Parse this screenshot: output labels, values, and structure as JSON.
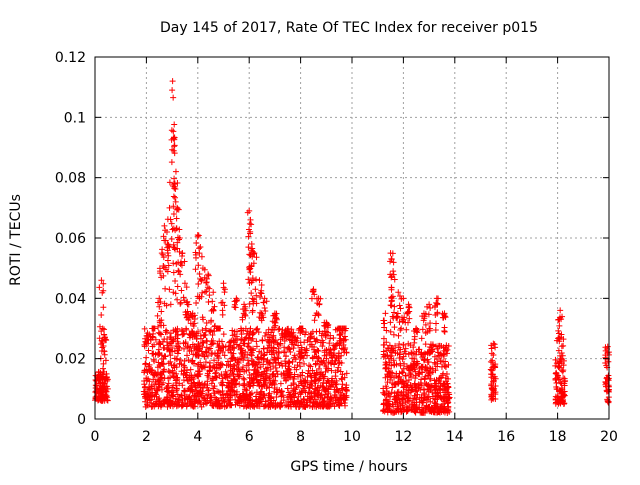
{
  "chart_data": {
    "type": "scatter",
    "title": "Day 145 of 2017, Rate Of TEC Index for receiver p015",
    "xlabel": "GPS time / hours",
    "ylabel": "ROTI / TECUs",
    "xlim": [
      0,
      20
    ],
    "ylim": [
      0,
      0.12
    ],
    "xticks": [
      "0",
      "2",
      "4",
      "6",
      "8",
      "10",
      "12",
      "14",
      "16",
      "18",
      "20"
    ],
    "yticks": [
      "0",
      "0.02",
      "0.04",
      "0.06",
      "0.08",
      "0.1",
      "0.12"
    ],
    "grid": true,
    "marker": "+",
    "colors": {
      "series": "#ff0000",
      "grid": "#a0a0a0",
      "axis": "#000000"
    },
    "series": [
      {
        "name": "ROTI",
        "clusters": [
          {
            "x_range": [
              0.0,
              0.5
            ],
            "y_base": [
              0.006,
              0.016
            ],
            "peak": [
              [
                0.25,
                0.046
              ],
              [
                0.3,
                0.03
              ],
              [
                0.35,
                0.028
              ]
            ]
          },
          {
            "x_range": [
              1.9,
              9.8
            ],
            "y_base": [
              0.004,
              0.03
            ],
            "peak": [
              [
                2.0,
                0.025
              ],
              [
                2.3,
                0.03
              ],
              [
                2.5,
                0.04
              ],
              [
                2.6,
                0.055
              ],
              [
                2.7,
                0.064
              ],
              [
                2.8,
                0.062
              ],
              [
                2.9,
                0.07
              ],
              [
                3.0,
                0.109
              ],
              [
                3.02,
                0.112
              ],
              [
                3.05,
                0.093
              ],
              [
                3.1,
                0.078
              ],
              [
                3.15,
                0.082
              ],
              [
                3.2,
                0.07
              ],
              [
                3.3,
                0.06
              ],
              [
                3.4,
                0.055
              ],
              [
                3.5,
                0.045
              ],
              [
                3.6,
                0.038
              ],
              [
                3.8,
                0.035
              ],
              [
                4.0,
                0.061
              ],
              [
                4.1,
                0.057
              ],
              [
                4.2,
                0.05
              ],
              [
                4.4,
                0.048
              ],
              [
                4.6,
                0.042
              ],
              [
                4.8,
                0.03
              ],
              [
                5.0,
                0.045
              ],
              [
                5.5,
                0.04
              ],
              [
                5.8,
                0.038
              ],
              [
                6.0,
                0.069
              ],
              [
                6.05,
                0.066
              ],
              [
                6.1,
                0.058
              ],
              [
                6.2,
                0.055
              ],
              [
                6.4,
                0.046
              ],
              [
                6.6,
                0.04
              ],
              [
                7.0,
                0.035
              ],
              [
                7.5,
                0.028
              ],
              [
                8.0,
                0.03
              ],
              [
                8.5,
                0.043
              ],
              [
                8.7,
                0.04
              ],
              [
                9.0,
                0.032
              ],
              [
                9.5,
                0.03
              ],
              [
                9.7,
                0.03
              ]
            ]
          },
          {
            "x_range": [
              11.2,
              13.8
            ],
            "y_base": [
              0.002,
              0.025
            ],
            "peak": [
              [
                11.3,
                0.035
              ],
              [
                11.5,
                0.055
              ],
              [
                11.55,
                0.053
              ],
              [
                11.6,
                0.049
              ],
              [
                11.8,
                0.042
              ],
              [
                12.0,
                0.04
              ],
              [
                12.2,
                0.038
              ],
              [
                12.5,
                0.03
              ],
              [
                12.8,
                0.035
              ],
              [
                13.0,
                0.038
              ],
              [
                13.3,
                0.04
              ],
              [
                13.6,
                0.035
              ]
            ]
          },
          {
            "x_range": [
              15.4,
              15.6
            ],
            "y_base": [
              0.006,
              0.02
            ],
            "peak": [
              [
                15.5,
                0.025
              ]
            ]
          },
          {
            "x_range": [
              17.9,
              18.3
            ],
            "y_base": [
              0.005,
              0.02
            ],
            "peak": [
              [
                18.05,
                0.033
              ],
              [
                18.1,
                0.036
              ],
              [
                18.15,
                0.028
              ]
            ]
          },
          {
            "x_range": [
              19.85,
              20.0
            ],
            "y_base": [
              0.005,
              0.02
            ],
            "peak": [
              [
                19.95,
                0.024
              ]
            ]
          }
        ]
      }
    ]
  }
}
